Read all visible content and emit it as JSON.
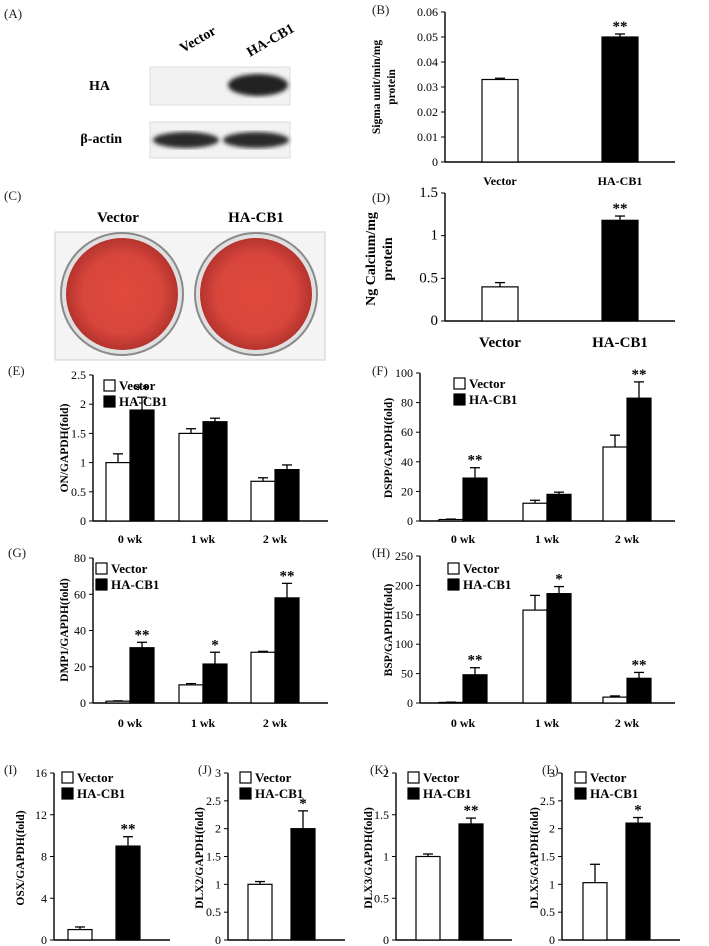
{
  "panels": {
    "A": {
      "letter": "(A)",
      "lanes": [
        "Vector",
        "HA-CB1"
      ],
      "rows": [
        "HA",
        "β-actin"
      ]
    },
    "C": {
      "letter": "(C)",
      "wells": [
        "Vector",
        "HA-CB1"
      ]
    }
  },
  "colors": {
    "vector": "#ffffff",
    "ha_cb1": "#000000",
    "stain": "#d9463b"
  },
  "chart_data": [
    {
      "id": "B",
      "letter": "(B)",
      "type": "bar",
      "ylabel": "Sigma unit/min/mg protein",
      "ylim": [
        0,
        0.06
      ],
      "yticks": [
        0,
        0.01,
        0.02,
        0.03,
        0.04,
        0.05,
        0.06
      ],
      "categories": [
        "Vector",
        "HA-CB1"
      ],
      "values": [
        0.033,
        0.05
      ],
      "errors": [
        0.0005,
        0.0012
      ],
      "significance": [
        "",
        "**"
      ]
    },
    {
      "id": "D",
      "letter": "(D)",
      "type": "bar",
      "ylabel": "Ng Calcium/mg protein",
      "ylim": [
        0,
        1.5
      ],
      "yticks": [
        0,
        0.5,
        1,
        1.5
      ],
      "categories": [
        "Vector",
        "HA-CB1"
      ],
      "values": [
        0.4,
        1.18
      ],
      "errors": [
        0.05,
        0.05
      ],
      "significance": [
        "",
        "**"
      ]
    },
    {
      "id": "E",
      "letter": "(E)",
      "type": "bar",
      "ylabel": "ON/GAPDH(fold)",
      "ylim": [
        0,
        2.5
      ],
      "yticks": [
        0,
        0.5,
        1,
        1.5,
        2,
        2.5
      ],
      "categories": [
        "0 wk",
        "1 wk",
        "2 wk"
      ],
      "legend": [
        "Vector",
        "HA-CB1"
      ],
      "series": [
        {
          "values": [
            1.0,
            1.5,
            0.68
          ],
          "errors": [
            0.15,
            0.08,
            0.06
          ]
        },
        {
          "values": [
            1.9,
            1.7,
            0.88
          ],
          "errors": [
            0.22,
            0.06,
            0.08
          ]
        }
      ],
      "significance": [
        "**",
        "",
        ""
      ]
    },
    {
      "id": "F",
      "letter": "(F)",
      "type": "bar",
      "ylabel": "DSPP/GAPDH(fold)",
      "ylim": [
        0,
        100
      ],
      "yticks": [
        0,
        20,
        40,
        60,
        80,
        100
      ],
      "categories": [
        "0 wk",
        "1 wk",
        "2 wk"
      ],
      "legend": [
        "Vector",
        "HA-CB1"
      ],
      "series": [
        {
          "values": [
            1,
            12,
            50
          ],
          "errors": [
            0.3,
            2,
            8
          ]
        },
        {
          "values": [
            29,
            18,
            83
          ],
          "errors": [
            7,
            1.5,
            11
          ]
        }
      ],
      "significance": [
        "**",
        "",
        "**"
      ]
    },
    {
      "id": "G",
      "letter": "(G)",
      "type": "bar",
      "ylabel": "DMP1/GAPDH(fold)",
      "ylim": [
        0,
        80
      ],
      "yticks": [
        0,
        20,
        40,
        60,
        80
      ],
      "categories": [
        "0 wk",
        "1 wk",
        "2 wk"
      ],
      "legend": [
        "Vector",
        "HA-CB1"
      ],
      "series": [
        {
          "values": [
            1,
            10,
            28
          ],
          "errors": [
            0.2,
            0.7,
            0.5
          ]
        },
        {
          "values": [
            30.5,
            21.5,
            58
          ],
          "errors": [
            3,
            6.5,
            8
          ]
        }
      ],
      "significance": [
        "**",
        "*",
        "**"
      ]
    },
    {
      "id": "H",
      "letter": "(H)",
      "type": "bar",
      "ylabel": "BSP/GAPDH(fold)",
      "ylim": [
        0,
        250
      ],
      "yticks": [
        0,
        50,
        100,
        150,
        200,
        250
      ],
      "categories": [
        "0 wk",
        "1 wk",
        "2 wk"
      ],
      "legend": [
        "Vector",
        "HA-CB1"
      ],
      "series": [
        {
          "values": [
            1,
            158,
            10
          ],
          "errors": [
            0.5,
            25,
            2
          ]
        },
        {
          "values": [
            48,
            186,
            42
          ],
          "errors": [
            12,
            12,
            10
          ]
        }
      ],
      "significance": [
        "**",
        "*",
        "**"
      ]
    },
    {
      "id": "I",
      "letter": "(I)",
      "type": "bar",
      "ylabel": "OSX/GAPDH(fold)",
      "ylim": [
        0,
        16
      ],
      "yticks": [
        0,
        4,
        8,
        12,
        16
      ],
      "categories": [
        "Vector",
        "HA-CB1"
      ],
      "legend": [
        "Vector",
        "HA-CB1"
      ],
      "values": [
        1.0,
        9.0
      ],
      "errors": [
        0.25,
        0.9
      ],
      "significance": [
        "",
        "**"
      ]
    },
    {
      "id": "J",
      "letter": "(J)",
      "type": "bar",
      "ylabel": "DLX2/GAPDH(fold)",
      "ylim": [
        0,
        3
      ],
      "yticks": [
        0,
        0.5,
        1,
        1.5,
        2,
        2.5,
        3
      ],
      "categories": [
        "Vector",
        "HA-CB1"
      ],
      "legend": [
        "Vector",
        "HA-CB1"
      ],
      "values": [
        1.0,
        2.0
      ],
      "errors": [
        0.05,
        0.32
      ],
      "significance": [
        "",
        "*"
      ]
    },
    {
      "id": "K",
      "letter": "(K)",
      "type": "bar",
      "ylabel": "DLX3/GAPDH(fold)",
      "ylim": [
        0,
        2
      ],
      "yticks": [
        0,
        0.5,
        1,
        1.5,
        2
      ],
      "categories": [
        "Vector",
        "HA-CB1"
      ],
      "legend": [
        "Vector",
        "HA-CB1"
      ],
      "values": [
        1.0,
        1.39
      ],
      "errors": [
        0.03,
        0.07
      ],
      "significance": [
        "",
        "**"
      ]
    },
    {
      "id": "L",
      "letter": "(L)",
      "type": "bar",
      "ylabel": "DLX5/GAPDH(fold)",
      "ylim": [
        0,
        3
      ],
      "yticks": [
        0,
        0.5,
        1,
        1.5,
        2,
        2.5,
        3
      ],
      "categories": [
        "Vector",
        "HA-CB1"
      ],
      "legend": [
        "Vector",
        "HA-CB1"
      ],
      "values": [
        1.03,
        2.1
      ],
      "errors": [
        0.33,
        0.1
      ],
      "significance": [
        "",
        "*"
      ]
    }
  ]
}
